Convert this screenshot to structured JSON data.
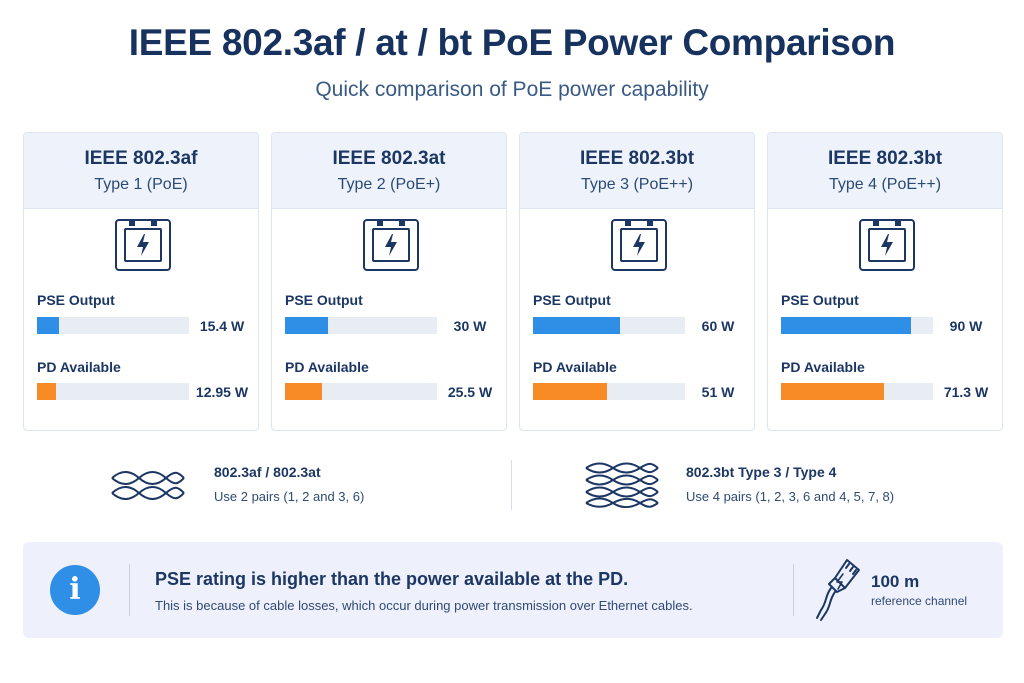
{
  "header": {
    "title": "IEEE 802.3af / at / bt PoE Power Comparison",
    "subtitle": "Quick comparison of PoE power capability"
  },
  "labels": {
    "pse_output": "PSE Output",
    "pd_available": "PD Available"
  },
  "colors": {
    "pse_bar": "#2f8ee6",
    "pd_bar": "#f88b26",
    "bar_track": "#e8edf4",
    "heading": "#17325f"
  },
  "scale_max_w": 105,
  "cards": [
    {
      "standard": "IEEE 802.3af",
      "type": "Type 1 (PoE)",
      "icon": "power-port-icon",
      "pse_w": 15.4,
      "pse_label": "15.4 W",
      "pd_w": 12.95,
      "pd_label": "12.95 W"
    },
    {
      "standard": "IEEE 802.3at",
      "type": "Type 2 (PoE+)",
      "icon": "power-port-icon",
      "pse_w": 30,
      "pse_label": "30 W",
      "pd_w": 25.5,
      "pd_label": "25.5 W"
    },
    {
      "standard": "IEEE 802.3bt",
      "type": "Type 3 (PoE++)",
      "icon": "power-port-icon",
      "pse_w": 60,
      "pse_label": "60 W",
      "pd_w": 51,
      "pd_label": "51 W"
    },
    {
      "standard": "IEEE 802.3bt",
      "type": "Type 4 (PoE++)",
      "icon": "power-port-icon",
      "pse_w": 90,
      "pse_label": "90 W",
      "pd_w": 71.3,
      "pd_label": "71.3 W"
    }
  ],
  "pairs": [
    {
      "title": "802.3af / 802.3at",
      "desc": "Use 2 pairs (1, 2 and 3, 6)",
      "icon": "twisted-pair-icon"
    },
    {
      "title": "802.3bt Type 3 / Type 4",
      "desc": "Use 4 pairs (1, 2, 3, 6 and 4, 5, 7, 8)",
      "icon": "twisted-pair-icon"
    }
  ],
  "note": {
    "icon": "info-icon",
    "title": "PSE rating is higher than the power available at the PD.",
    "text": "This is because of cable losses, which occur during power transmission over Ethernet cables.",
    "distance": "100 m",
    "distance_label": "reference channel",
    "distance_icon": "ethernet-cable-icon"
  }
}
